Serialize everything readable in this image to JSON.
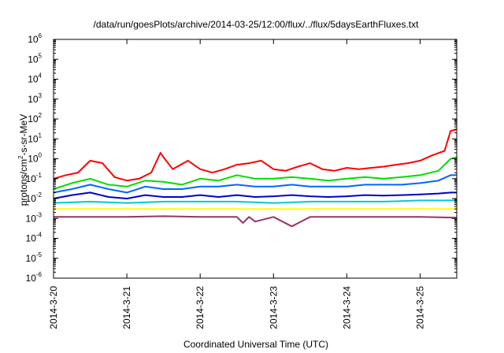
{
  "chart_data": {
    "type": "line",
    "title": "/data/run/goesPlots/archive/2014-03-25/12:00/flux/../flux/5daysEarthFluxes.txt",
    "xlabel": "Coordinated Universal Time (UTC)",
    "ylabel": {
      "base": "protons/cm",
      "sup": "2",
      "tail": "-s-sr-MeV"
    },
    "y_scale": "log",
    "ylim": [
      1e-06,
      1000000.0
    ],
    "y_ticks": [
      {
        "value": 1e-06,
        "base": "10",
        "exp": "-6"
      },
      {
        "value": 1e-05,
        "base": "10",
        "exp": "-5"
      },
      {
        "value": 0.0001,
        "base": "10",
        "exp": "-4"
      },
      {
        "value": 0.001,
        "base": "10",
        "exp": "-3"
      },
      {
        "value": 0.01,
        "base": "10",
        "exp": "-2"
      },
      {
        "value": 0.1,
        "base": "10",
        "exp": "-1"
      },
      {
        "value": 1.0,
        "base": "10",
        "exp": "0"
      },
      {
        "value": 10.0,
        "base": "10",
        "exp": "1"
      },
      {
        "value": 100.0,
        "base": "10",
        "exp": "2"
      },
      {
        "value": 1000.0,
        "base": "10",
        "exp": "3"
      },
      {
        "value": 10000.0,
        "base": "10",
        "exp": "4"
      },
      {
        "value": 100000.0,
        "base": "10",
        "exp": "5"
      },
      {
        "value": 1000000.0,
        "base": "10",
        "exp": "6"
      }
    ],
    "x_range": [
      "2014-03-20 00:00",
      "2014-03-25 12:00"
    ],
    "x_ticks": [
      {
        "date": "2014-03-20 00:00",
        "label": "2014-3-20"
      },
      {
        "date": "2014-03-21 00:00",
        "label": "2014-3-21"
      },
      {
        "date": "2014-03-22 00:00",
        "label": "2014-3-22"
      },
      {
        "date": "2014-03-23 00:00",
        "label": "2014-3-23"
      },
      {
        "date": "2014-03-24 00:00",
        "label": "2014-3-24"
      },
      {
        "date": "2014-03-25 00:00",
        "label": "2014-3-25"
      }
    ],
    "grid": false,
    "legend": "none",
    "series": [
      {
        "color": "#ff0000",
        "x": [
          "2014-03-20 00:00",
          "2014-03-20 04:00",
          "2014-03-20 08:00",
          "2014-03-20 12:00",
          "2014-03-20 16:00",
          "2014-03-20 20:00",
          "2014-03-21 00:00",
          "2014-03-21 04:00",
          "2014-03-21 08:00",
          "2014-03-21 11:00",
          "2014-03-21 12:00",
          "2014-03-21 15:00",
          "2014-03-21 20:00",
          "2014-03-22 00:00",
          "2014-03-22 04:00",
          "2014-03-22 08:00",
          "2014-03-22 12:00",
          "2014-03-22 16:00",
          "2014-03-22 20:00",
          "2014-03-23 00:00",
          "2014-03-23 04:00",
          "2014-03-23 08:00",
          "2014-03-23 12:00",
          "2014-03-23 16:00",
          "2014-03-23 20:00",
          "2014-03-24 00:00",
          "2014-03-24 04:00",
          "2014-03-24 08:00",
          "2014-03-24 12:00",
          "2014-03-24 16:00",
          "2014-03-24 20:00",
          "2014-03-25 00:00",
          "2014-03-25 04:00",
          "2014-03-25 08:00",
          "2014-03-25 10:00",
          "2014-03-25 12:00"
        ],
        "values": [
          0.1,
          0.15,
          0.2,
          0.8,
          0.6,
          0.12,
          0.08,
          0.1,
          0.2,
          2.0,
          1.2,
          0.3,
          0.8,
          0.3,
          0.2,
          0.3,
          0.5,
          0.6,
          0.8,
          0.3,
          0.25,
          0.4,
          0.6,
          0.3,
          0.25,
          0.35,
          0.3,
          0.35,
          0.4,
          0.5,
          0.6,
          0.8,
          1.5,
          2.5,
          25,
          30
        ]
      },
      {
        "color": "#00dd00",
        "x": [
          "2014-03-20 00:00",
          "2014-03-20 06:00",
          "2014-03-20 12:00",
          "2014-03-20 18:00",
          "2014-03-21 00:00",
          "2014-03-21 06:00",
          "2014-03-21 12:00",
          "2014-03-21 18:00",
          "2014-03-22 00:00",
          "2014-03-22 06:00",
          "2014-03-22 12:00",
          "2014-03-22 18:00",
          "2014-03-23 00:00",
          "2014-03-23 06:00",
          "2014-03-23 12:00",
          "2014-03-23 18:00",
          "2014-03-24 00:00",
          "2014-03-24 06:00",
          "2014-03-24 12:00",
          "2014-03-24 18:00",
          "2014-03-25 00:00",
          "2014-03-25 06:00",
          "2014-03-25 10:00",
          "2014-03-25 12:00"
        ],
        "values": [
          0.03,
          0.06,
          0.1,
          0.05,
          0.04,
          0.08,
          0.07,
          0.05,
          0.1,
          0.08,
          0.15,
          0.1,
          0.1,
          0.12,
          0.1,
          0.08,
          0.1,
          0.12,
          0.1,
          0.12,
          0.15,
          0.25,
          1.0,
          1.2
        ]
      },
      {
        "color": "#0066ff",
        "x": [
          "2014-03-20 00:00",
          "2014-03-20 06:00",
          "2014-03-20 12:00",
          "2014-03-20 18:00",
          "2014-03-21 00:00",
          "2014-03-21 06:00",
          "2014-03-21 12:00",
          "2014-03-21 18:00",
          "2014-03-22 00:00",
          "2014-03-22 06:00",
          "2014-03-22 12:00",
          "2014-03-22 18:00",
          "2014-03-23 00:00",
          "2014-03-23 06:00",
          "2014-03-23 12:00",
          "2014-03-23 18:00",
          "2014-03-24 00:00",
          "2014-03-24 06:00",
          "2014-03-24 12:00",
          "2014-03-24 18:00",
          "2014-03-25 00:00",
          "2014-03-25 06:00",
          "2014-03-25 10:00",
          "2014-03-25 12:00"
        ],
        "values": [
          0.02,
          0.03,
          0.05,
          0.03,
          0.02,
          0.04,
          0.03,
          0.03,
          0.04,
          0.04,
          0.05,
          0.04,
          0.04,
          0.05,
          0.04,
          0.04,
          0.04,
          0.05,
          0.05,
          0.05,
          0.06,
          0.08,
          0.15,
          0.15
        ]
      },
      {
        "color": "#0000cc",
        "x": [
          "2014-03-20 00:00",
          "2014-03-20 06:00",
          "2014-03-20 12:00",
          "2014-03-20 18:00",
          "2014-03-21 00:00",
          "2014-03-21 06:00",
          "2014-03-21 12:00",
          "2014-03-21 18:00",
          "2014-03-22 00:00",
          "2014-03-22 06:00",
          "2014-03-22 12:00",
          "2014-03-22 18:00",
          "2014-03-23 00:00",
          "2014-03-23 06:00",
          "2014-03-23 12:00",
          "2014-03-23 18:00",
          "2014-03-24 00:00",
          "2014-03-24 06:00",
          "2014-03-24 12:00",
          "2014-03-24 18:00",
          "2014-03-25 00:00",
          "2014-03-25 06:00",
          "2014-03-25 10:00",
          "2014-03-25 12:00"
        ],
        "values": [
          0.01,
          0.015,
          0.02,
          0.012,
          0.01,
          0.015,
          0.012,
          0.012,
          0.015,
          0.012,
          0.015,
          0.012,
          0.013,
          0.015,
          0.013,
          0.012,
          0.013,
          0.015,
          0.014,
          0.015,
          0.016,
          0.018,
          0.02,
          0.02
        ]
      },
      {
        "color": "#00cccc",
        "x": [
          "2014-03-20 00:00",
          "2014-03-20 12:00",
          "2014-03-21 00:00",
          "2014-03-21 12:00",
          "2014-03-22 00:00",
          "2014-03-22 12:00",
          "2014-03-23 00:00",
          "2014-03-23 12:00",
          "2014-03-24 00:00",
          "2014-03-24 12:00",
          "2014-03-25 00:00",
          "2014-03-25 12:00"
        ],
        "values": [
          0.006,
          0.007,
          0.006,
          0.007,
          0.007,
          0.007,
          0.006,
          0.007,
          0.007,
          0.007,
          0.008,
          0.008
        ]
      },
      {
        "color": "#ffff00",
        "x": [
          "2014-03-20 00:00",
          "2014-03-20 12:00",
          "2014-03-21 00:00",
          "2014-03-21 12:00",
          "2014-03-22 00:00",
          "2014-03-22 12:00",
          "2014-03-23 00:00",
          "2014-03-23 12:00",
          "2014-03-24 00:00",
          "2014-03-24 12:00",
          "2014-03-25 00:00",
          "2014-03-25 12:00"
        ],
        "values": [
          0.003,
          0.003,
          0.003,
          0.003,
          0.003,
          0.003,
          0.003,
          0.003,
          0.003,
          0.003,
          0.003,
          0.003
        ]
      },
      {
        "color": "#993366",
        "x": [
          "2014-03-20 00:00",
          "2014-03-20 12:00",
          "2014-03-21 00:00",
          "2014-03-21 12:00",
          "2014-03-22 00:00",
          "2014-03-22 12:00",
          "2014-03-22 14:00",
          "2014-03-22 16:00",
          "2014-03-22 18:00",
          "2014-03-23 00:00",
          "2014-03-23 06:00",
          "2014-03-23 12:00",
          "2014-03-24 00:00",
          "2014-03-24 12:00",
          "2014-03-25 00:00",
          "2014-03-25 12:00"
        ],
        "values": [
          0.0012,
          0.0012,
          0.0012,
          0.0013,
          0.0012,
          0.0012,
          0.0006,
          0.0012,
          0.0007,
          0.0012,
          0.0004,
          0.0012,
          0.0012,
          0.0012,
          0.0012,
          0.0011
        ]
      }
    ]
  }
}
